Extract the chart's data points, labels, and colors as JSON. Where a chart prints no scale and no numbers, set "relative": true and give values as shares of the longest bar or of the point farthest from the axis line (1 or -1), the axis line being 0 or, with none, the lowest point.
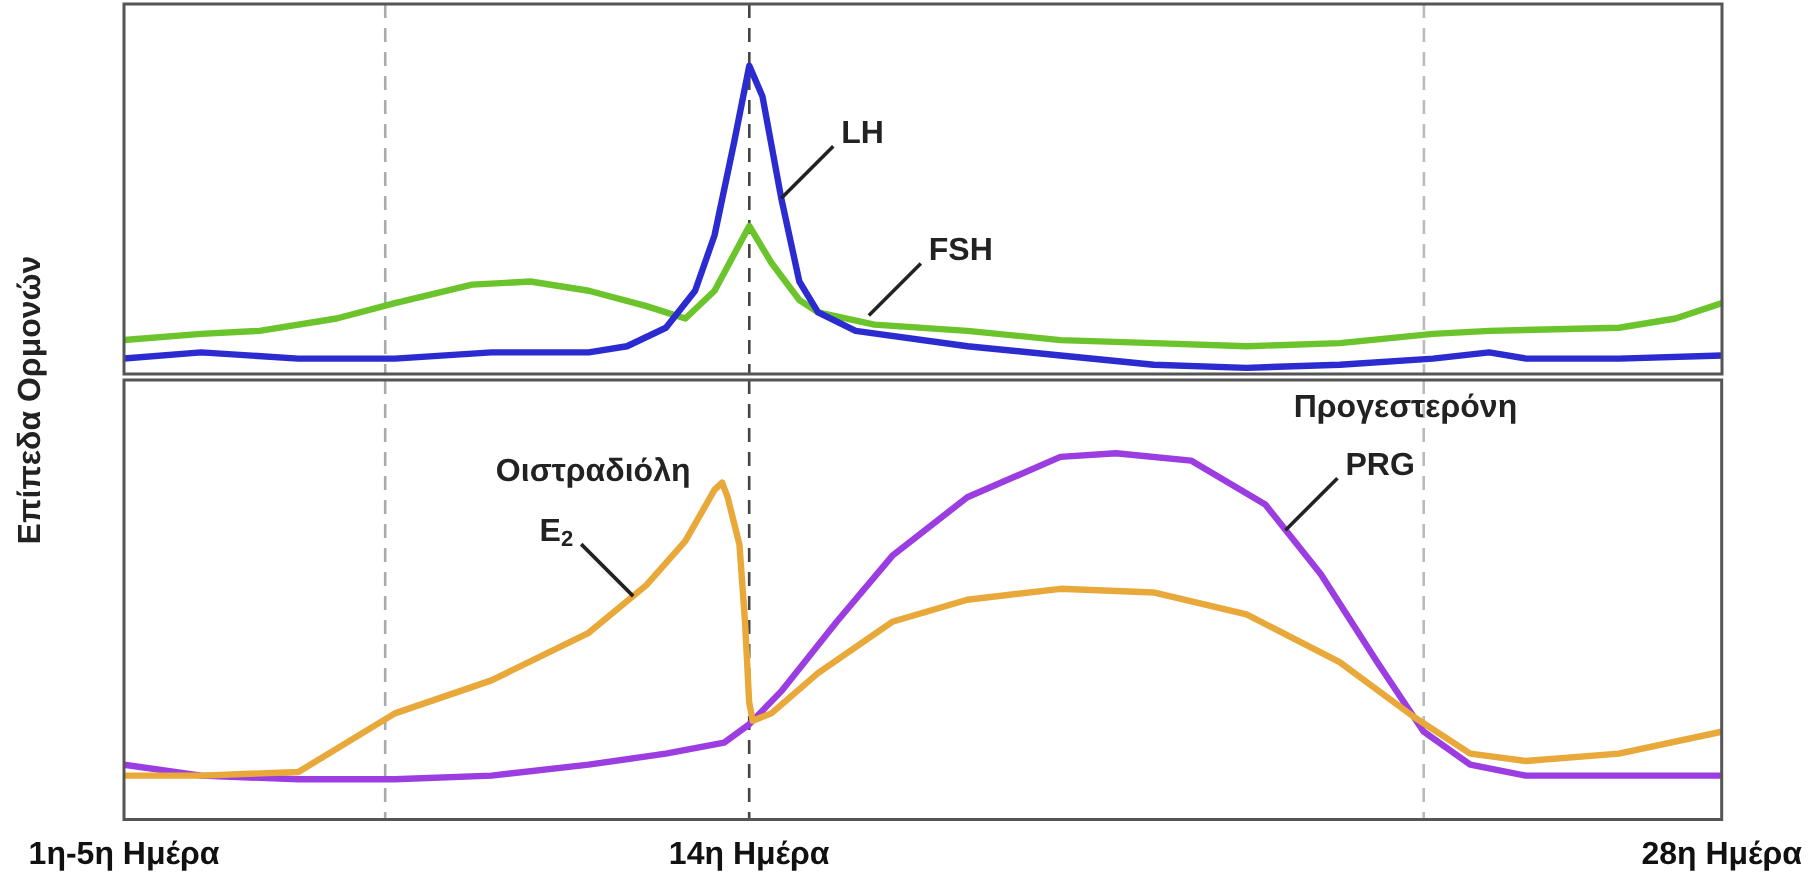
{
  "chart_data": [
    {
      "type": "line",
      "relative": true,
      "ylabel": "Επίπεδα Ορμονών",
      "xlim": [
        5,
        28
      ],
      "tick_labels": false,
      "line_style": "solid",
      "ref_lines": [
        {
          "axis": "x",
          "value": 8.76,
          "color": "#aaaaaa",
          "line_style": "dashed"
        },
        {
          "axis": "x",
          "value": 14,
          "color": "#444444",
          "line_style": "dashed"
        },
        {
          "axis": "x",
          "value": 23.71,
          "color": "#bbbbbb",
          "line_style": "dashed"
        }
      ],
      "series": [
        {
          "color": "#2b2bd0",
          "x": [
            5,
            6.11,
            7.51,
            8.9,
            10.29,
            11.69,
            12.24,
            12.8,
            13.22,
            13.5,
            13.78,
            14,
            14.19,
            14.46,
            14.72,
            14.99,
            15.53,
            17.14,
            18.48,
            19.82,
            21.16,
            22.5,
            23.84,
            24.65,
            25.18,
            26.52,
            28
          ],
          "values": [
            0.05,
            0.07,
            0.05,
            0.05,
            0.07,
            0.07,
            0.09,
            0.15,
            0.27,
            0.45,
            0.75,
            1,
            0.9,
            0.57,
            0.3,
            0.2,
            0.14,
            0.09,
            0.06,
            0.03,
            0.02,
            0.03,
            0.05,
            0.07,
            0.05,
            0.05,
            0.06
          ]
        },
        {
          "color": "#6cc42c",
          "x": [
            5,
            6.11,
            6.95,
            8.06,
            8.9,
            10.01,
            10.85,
            11.69,
            12.52,
            13.08,
            13.5,
            14,
            14.32,
            14.72,
            14.99,
            15.8,
            17.14,
            18.48,
            19.82,
            21.16,
            22.5,
            23.84,
            24.65,
            26.52,
            27.33,
            28
          ],
          "values": [
            0.11,
            0.13,
            0.14,
            0.18,
            0.23,
            0.29,
            0.3,
            0.27,
            0.22,
            0.18,
            0.27,
            0.48,
            0.36,
            0.24,
            0.2,
            0.16,
            0.14,
            0.11,
            0.1,
            0.09,
            0.1,
            0.13,
            0.14,
            0.15,
            0.18,
            0.23
          ]
        }
      ],
      "annotations": [
        {
          "text": "LH",
          "x": 14.46,
          "y": 0.57
        },
        {
          "text": "FSH",
          "x": 15.72,
          "y": 0.19
        }
      ]
    },
    {
      "type": "line",
      "relative": true,
      "xlim": [
        5,
        28
      ],
      "tick_labels": "x",
      "line_style": "solid",
      "xticks": [
        {
          "value": 5,
          "label": "1η-5η Ημέρα"
        },
        {
          "value": 14,
          "label": "14η Ημέρα"
        },
        {
          "value": 28,
          "label": "28η Ημέρα"
        }
      ],
      "ref_lines": [
        {
          "axis": "x",
          "value": 8.76,
          "color": "#aaaaaa",
          "line_style": "dashed"
        },
        {
          "axis": "x",
          "value": 14,
          "color": "#444444",
          "line_style": "dashed"
        },
        {
          "axis": "x",
          "value": 23.71,
          "color": "#bbbbbb",
          "line_style": "dashed"
        }
      ],
      "series": [
        {
          "color": "#e9a93a",
          "x": [
            5,
            6.11,
            7.51,
            8.9,
            10.29,
            11.69,
            12.52,
            13.08,
            13.5,
            13.61,
            13.69,
            13.86,
            13.94,
            14,
            14.05,
            14.32,
            14.99,
            16.06,
            17.14,
            18.48,
            19.82,
            21.16,
            22.5,
            23.57,
            24.38,
            25.18,
            26.52,
            28
          ],
          "values": [
            0.12,
            0.12,
            0.13,
            0.29,
            0.38,
            0.51,
            0.64,
            0.76,
            0.9,
            0.92,
            0.88,
            0.75,
            0.54,
            0.32,
            0.27,
            0.29,
            0.4,
            0.54,
            0.6,
            0.63,
            0.62,
            0.56,
            0.43,
            0.28,
            0.18,
            0.16,
            0.18,
            0.24
          ]
        },
        {
          "color": "#9b3de0",
          "x": [
            5,
            6.11,
            7.51,
            8.9,
            10.29,
            11.69,
            12.8,
            13.64,
            14,
            14.46,
            15.26,
            16.06,
            17.14,
            18.48,
            19.28,
            20.36,
            21.43,
            22.23,
            23.04,
            23.71,
            24.38,
            25.18,
            26.52,
            28
          ],
          "values": [
            0.15,
            0.12,
            0.11,
            0.11,
            0.12,
            0.15,
            0.18,
            0.21,
            0.26,
            0.35,
            0.54,
            0.72,
            0.88,
            0.99,
            1,
            0.98,
            0.86,
            0.67,
            0.43,
            0.24,
            0.15,
            0.12,
            0.12,
            0.12
          ]
        }
      ],
      "annotations": [
        "Οιστραδιόλη",
        {
          "text": "E$_{2}$",
          "x": 12.33,
          "y": 0.61
        },
        "Προγεστερόνη",
        {
          "text": "PRG",
          "x": 21.72,
          "y": 0.79
        }
      ]
    }
  ]
}
